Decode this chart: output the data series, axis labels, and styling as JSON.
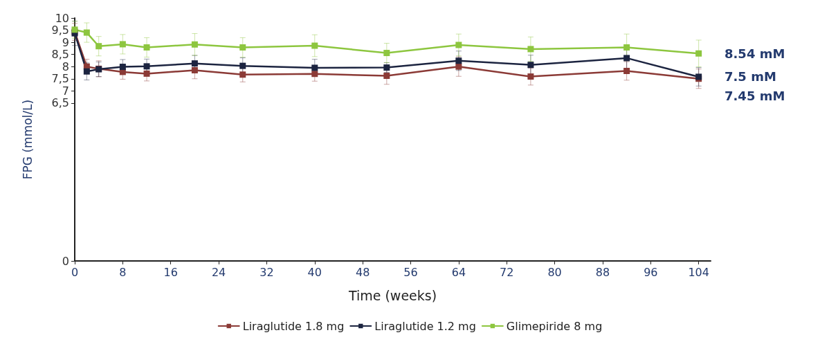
{
  "chart_data": {
    "type": "line",
    "xlabel": "Time (weeks)",
    "ylabel": "FPG (mmol/L)",
    "x": [
      0,
      2,
      4,
      8,
      12,
      20,
      28,
      40,
      52,
      64,
      76,
      92,
      104
    ],
    "xlim": [
      0,
      106
    ],
    "xticks": [
      0,
      8,
      16,
      24,
      32,
      40,
      48,
      56,
      64,
      72,
      80,
      88,
      96,
      104
    ],
    "ylim": [
      0,
      10
    ],
    "yticks": [
      0,
      {
        "value": 6.5,
        "label": "6,5"
      },
      7,
      {
        "value": 7.5,
        "label": "7,5"
      },
      8,
      {
        "value": 8.5,
        "label": "8,5"
      },
      9,
      {
        "value": 9.5,
        "label": "9,5"
      },
      10
    ],
    "series": [
      {
        "name": "Liraglutide 1.8 mg",
        "color": "#8b3a36",
        "values": [
          9.43,
          8.0,
          7.91,
          7.78,
          7.71,
          7.85,
          7.67,
          7.7,
          7.62,
          8.0,
          7.59,
          7.82,
          7.5
        ],
        "errors": [
          0.35,
          0.3,
          0.33,
          0.3,
          0.3,
          0.35,
          0.3,
          0.3,
          0.35,
          0.4,
          0.35,
          0.38,
          0.4
        ]
      },
      {
        "name": "Liraglutide 1.2 mg",
        "color": "#1c2440",
        "values": [
          9.37,
          7.8,
          7.89,
          7.99,
          8.01,
          8.13,
          8.03,
          7.95,
          7.96,
          8.24,
          8.07,
          8.35,
          7.58
        ],
        "errors": [
          0.5,
          0.35,
          0.3,
          0.3,
          0.3,
          0.33,
          0.33,
          0.35,
          0.2,
          0.4,
          0.4,
          0.45,
          0.38
        ]
      },
      {
        "name": "Glimepiride 8 mg",
        "color": "#8dc63f",
        "values": [
          9.52,
          9.4,
          8.84,
          8.92,
          8.79,
          8.91,
          8.79,
          8.86,
          8.56,
          8.89,
          8.72,
          8.79,
          8.54
        ],
        "errors": [
          0.35,
          0.4,
          0.4,
          0.4,
          0.4,
          0.45,
          0.4,
          0.45,
          0.4,
          0.45,
          0.5,
          0.55,
          0.55
        ]
      }
    ],
    "annotations": [
      "8.54 mM",
      "7.5 mM",
      "7.45 mM"
    ],
    "marker": "square",
    "line_style": "solid",
    "grid": false,
    "legend": "bottom"
  }
}
